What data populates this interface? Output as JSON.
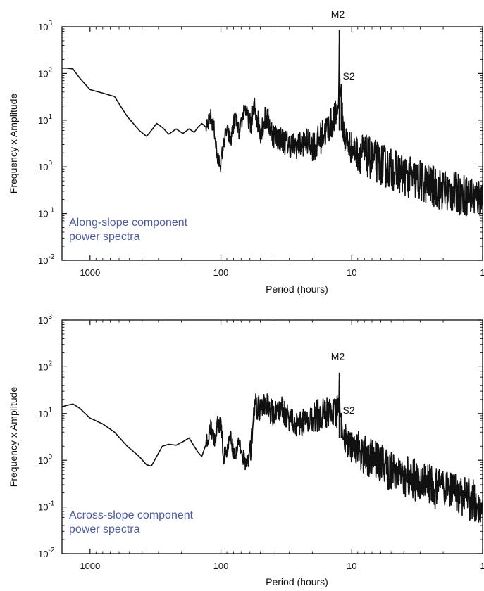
{
  "colors": {
    "spectrum_line": "#111111",
    "frame": "#111111",
    "annotation": "#4a5aa8"
  },
  "chart_data": [
    {
      "type": "line",
      "panel": "along",
      "xlabel": "Period (hours)",
      "ylabel": "Frequency x Amplitude",
      "x_scale": "log-reversed",
      "y_scale": "log",
      "xlim": [
        1638,
        1
      ],
      "ylim": [
        0.01,
        1000
      ],
      "x_ticks": [
        1000,
        100,
        10,
        1
      ],
      "x_tick_labels": [
        "1000",
        "100",
        "10",
        "1"
      ],
      "y_tick_labels": [
        {
          "base": "10",
          "exp": "-2"
        },
        {
          "base": "10",
          "exp": "-1"
        },
        {
          "base": "10",
          "exp": "0"
        },
        {
          "base": "10",
          "exp": "1"
        },
        {
          "base": "10",
          "exp": "2"
        },
        {
          "base": "10",
          "exp": "3"
        }
      ],
      "annotation_lines": [
        "Along-slope component",
        "power spectra"
      ],
      "peak_labels": [
        {
          "text": "M2",
          "period": 12.42,
          "value": 850
        },
        {
          "text": "S2",
          "period": 12.0,
          "value": 60
        }
      ],
      "series": [
        {
          "values_description_free": true,
          "x": [
            1638,
            1500,
            1350,
            1200,
            1000,
            800,
            650,
            520,
            420,
            370,
            340,
            310,
            280,
            250,
            220,
            195,
            175,
            160,
            150,
            140,
            128,
            120,
            112,
            106,
            100,
            95,
            90,
            84,
            78,
            72,
            66,
            60,
            55,
            50,
            45,
            40,
            35,
            30,
            26,
            22,
            19,
            16.5,
            14.5,
            13.3,
            12.6,
            12.42,
            12.3,
            12.0,
            11.8,
            11.3,
            10.5,
            9.5,
            8.5,
            7.5,
            6.5,
            5.5,
            4.5,
            3.7,
            3,
            2.5,
            2,
            1.6,
            1.3,
            1.1,
            1
          ],
          "y": [
            130,
            130,
            125,
            80,
            45,
            38,
            32,
            12,
            6,
            4.5,
            6,
            8.5,
            7,
            5,
            6.5,
            5.2,
            6.5,
            5.5,
            7,
            8.5,
            6.8,
            12,
            6,
            1.4,
            1.2,
            3.5,
            6,
            3.5,
            12,
            5,
            20,
            8,
            18,
            6,
            12,
            5,
            4,
            3,
            2.8,
            3.5,
            2.8,
            5,
            8,
            12,
            20,
            850,
            30,
            60,
            10,
            4,
            3,
            2.2,
            2.0,
            1.6,
            1.3,
            1.0,
            0.8,
            0.6,
            0.5,
            0.4,
            0.32,
            0.27,
            0.24,
            0.22,
            0.22
          ]
        }
      ]
    },
    {
      "type": "line",
      "panel": "across",
      "xlabel": "Period (hours)",
      "ylabel": "Frequency x Amplitude",
      "x_scale": "log-reversed",
      "y_scale": "log",
      "xlim": [
        1638,
        1
      ],
      "ylim": [
        0.01,
        1000
      ],
      "x_ticks": [
        1000,
        100,
        10,
        1
      ],
      "x_tick_labels": [
        "1000",
        "100",
        "10",
        "1"
      ],
      "y_tick_labels": [
        {
          "base": "10",
          "exp": "-2"
        },
        {
          "base": "10",
          "exp": "-1"
        },
        {
          "base": "10",
          "exp": "0"
        },
        {
          "base": "10",
          "exp": "1"
        },
        {
          "base": "10",
          "exp": "2"
        },
        {
          "base": "10",
          "exp": "3"
        }
      ],
      "annotation_lines": [
        "Across-slope component",
        "power spectra"
      ],
      "peak_labels": [
        {
          "text": "M2",
          "period": 12.42,
          "value": 75
        },
        {
          "text": "S2",
          "period": 12.0,
          "value": 10
        }
      ],
      "series": [
        {
          "x": [
            1638,
            1500,
            1350,
            1200,
            1000,
            800,
            650,
            520,
            420,
            370,
            340,
            310,
            280,
            250,
            220,
            195,
            175,
            160,
            150,
            140,
            128,
            120,
            112,
            106,
            100,
            95,
            90,
            84,
            78,
            72,
            66,
            60,
            55,
            50,
            45,
            40,
            35,
            30,
            26,
            22,
            19,
            16.5,
            14.5,
            13.3,
            12.6,
            12.42,
            12.3,
            12.0,
            11.8,
            11.3,
            10.5,
            9.5,
            8.5,
            7.5,
            6.5,
            5.5,
            4.5,
            3.7,
            3,
            2.5,
            2,
            1.6,
            1.3,
            1.1,
            1
          ],
          "y": [
            14,
            15,
            16,
            13,
            8,
            6,
            4,
            2,
            1.2,
            0.8,
            0.75,
            1.2,
            2,
            2.2,
            2.1,
            2.5,
            3,
            2,
            1.5,
            1.2,
            2.5,
            5,
            2.5,
            6,
            5.5,
            1.2,
            1.5,
            3,
            1.2,
            2.5,
            0.9,
            1.2,
            15,
            12,
            15,
            10,
            13,
            8,
            6,
            7,
            9,
            10,
            13,
            10,
            12,
            75,
            8,
            10,
            4,
            3,
            2.2,
            1.8,
            1.5,
            1.2,
            0.9,
            0.7,
            0.55,
            0.42,
            0.35,
            0.28,
            0.22,
            0.18,
            0.15,
            0.13,
            0.12
          ]
        }
      ]
    }
  ]
}
